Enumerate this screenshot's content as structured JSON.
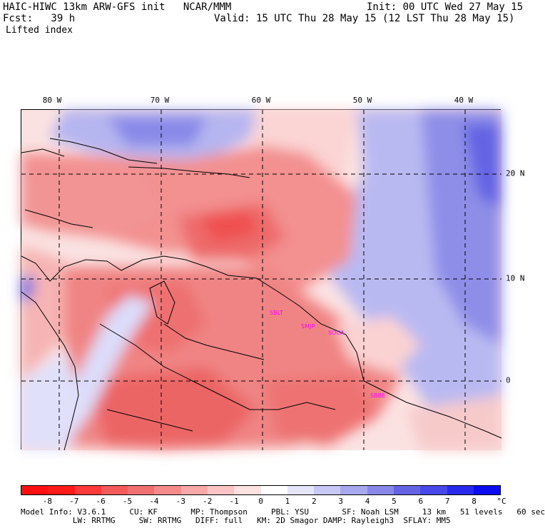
{
  "header": {
    "title_left": "HAIC-HIWC 13km ARW-GFS init   NCAR/MMM",
    "init": "Init: 00 UTC Wed 27 May 15",
    "fcst": "Fcst:   39 h",
    "valid": "Valid: 15 UTC Thu 28 May 15 (12 LST Thu 28 May 15)",
    "field": "Lifted index"
  },
  "axes": {
    "lon_labels": [
      "80 W",
      "70 W",
      "60 W",
      "50 W",
      "40 W"
    ],
    "lat_labels": [
      "20 N",
      "10 N",
      "0"
    ]
  },
  "stations": [
    "SBLT",
    "SMJP",
    "SOCA",
    "SBBE"
  ],
  "colorbar": {
    "ticks": [
      "-8",
      "-7",
      "-6",
      "-5",
      "-4",
      "-3",
      "-2",
      "-1",
      "0",
      "1",
      "2",
      "3",
      "4",
      "5",
      "6",
      "7",
      "8"
    ],
    "unit": "°C",
    "colors": [
      "#ff1a1a",
      "#ff3a3a",
      "#f45a5a",
      "#f07070",
      "#f48a8a",
      "#f8a8a8",
      "#fbc4c4",
      "#fde0e0",
      "#ffffff",
      "#e4e4fb",
      "#c8c8f6",
      "#a8a8ef",
      "#8888e8",
      "#6464e4",
      "#4848ea",
      "#2828ee",
      "#0c0cf0"
    ]
  },
  "footer": {
    "line1": "Model Info: V3.6.1     CU: KF       MP: Thompson     PBL: YSU       SF: Noah LSM     13 km   51 levels   60 sec",
    "line2": "           LW: RRTMG     SW: RRTMG   DIFF: full   KM: 2D Smagor DAMP: Rayleigh3  SFLAY: MM5"
  }
}
